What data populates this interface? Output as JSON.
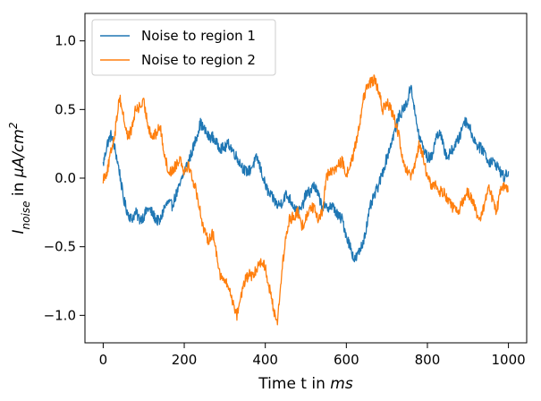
{
  "chart_data": {
    "type": "line",
    "xlabel": "Time t in ms",
    "xlabel_parts": {
      "prefix": "Time t in ",
      "unit": "ms"
    },
    "ylabel": "I_noise in μA/cm²",
    "ylabel_parts": {
      "symbol": "I",
      "subscript": "noise",
      "middle": " in ",
      "unit": "μA/cm",
      "superscript": "2"
    },
    "xlim": [
      -45,
      1045
    ],
    "ylim": [
      -1.2,
      1.2
    ],
    "x_ticks": [
      0,
      200,
      400,
      600,
      800,
      1000
    ],
    "x_tick_labels": [
      "0",
      "200",
      "400",
      "600",
      "800",
      "1000"
    ],
    "y_ticks": [
      -1.0,
      -0.5,
      0.0,
      0.5,
      1.0
    ],
    "y_tick_labels": [
      "−1.0",
      "−0.5",
      "0.0",
      "0.5",
      "1.0"
    ],
    "grid": false,
    "legend_position": "top-left",
    "series": [
      {
        "name": "Noise to region 1",
        "color": "#1f77b4",
        "x": [
          0,
          10,
          20,
          30,
          40,
          50,
          60,
          70,
          80,
          90,
          100,
          110,
          120,
          130,
          140,
          150,
          160,
          170,
          180,
          190,
          200,
          210,
          220,
          230,
          240,
          250,
          260,
          270,
          280,
          290,
          300,
          310,
          320,
          330,
          340,
          350,
          360,
          370,
          380,
          390,
          400,
          410,
          420,
          430,
          440,
          450,
          460,
          470,
          480,
          490,
          500,
          510,
          520,
          530,
          540,
          550,
          560,
          570,
          580,
          590,
          600,
          610,
          620,
          630,
          640,
          650,
          660,
          670,
          680,
          690,
          700,
          710,
          720,
          730,
          740,
          750,
          760,
          770,
          780,
          790,
          800,
          810,
          820,
          830,
          840,
          850,
          860,
          870,
          880,
          890,
          900,
          910,
          920,
          930,
          940,
          950,
          960,
          970,
          980,
          990,
          1000
        ],
        "values": [
          0.1,
          0.25,
          0.32,
          0.2,
          0.05,
          -0.15,
          -0.25,
          -0.3,
          -0.25,
          -0.3,
          -0.28,
          -0.22,
          -0.25,
          -0.3,
          -0.32,
          -0.22,
          -0.18,
          -0.2,
          -0.12,
          -0.05,
          0.05,
          0.12,
          0.2,
          0.3,
          0.4,
          0.35,
          0.3,
          0.3,
          0.25,
          0.22,
          0.22,
          0.25,
          0.2,
          0.15,
          0.1,
          0.05,
          0.05,
          0.1,
          0.15,
          0.05,
          -0.05,
          -0.12,
          -0.15,
          -0.2,
          -0.18,
          -0.12,
          -0.15,
          -0.2,
          -0.25,
          -0.22,
          -0.12,
          -0.1,
          -0.05,
          -0.12,
          -0.2,
          -0.22,
          -0.2,
          -0.22,
          -0.28,
          -0.3,
          -0.42,
          -0.5,
          -0.6,
          -0.55,
          -0.48,
          -0.35,
          -0.2,
          -0.12,
          -0.05,
          0.05,
          0.15,
          0.25,
          0.35,
          0.45,
          0.5,
          0.55,
          0.68,
          0.45,
          0.3,
          0.22,
          0.15,
          0.15,
          0.28,
          0.35,
          0.22,
          0.15,
          0.2,
          0.25,
          0.3,
          0.42,
          0.4,
          0.32,
          0.25,
          0.22,
          0.2,
          0.12,
          0.12,
          0.1,
          0.05,
          0.0,
          0.05
        ]
      },
      {
        "name": "Noise to region 2",
        "color": "#ff7f0e",
        "x": [
          0,
          10,
          20,
          30,
          40,
          50,
          60,
          70,
          80,
          90,
          100,
          110,
          120,
          130,
          140,
          150,
          160,
          170,
          180,
          190,
          200,
          210,
          220,
          230,
          240,
          250,
          260,
          270,
          280,
          290,
          300,
          310,
          320,
          330,
          340,
          350,
          360,
          370,
          380,
          390,
          400,
          410,
          420,
          430,
          440,
          450,
          460,
          470,
          480,
          490,
          500,
          510,
          520,
          530,
          540,
          550,
          560,
          570,
          580,
          590,
          600,
          610,
          620,
          630,
          640,
          650,
          660,
          670,
          680,
          690,
          700,
          710,
          720,
          730,
          740,
          750,
          760,
          770,
          780,
          790,
          800,
          810,
          820,
          830,
          840,
          850,
          860,
          870,
          880,
          890,
          900,
          910,
          920,
          930,
          940,
          950,
          960,
          970,
          980,
          990,
          1000
        ],
        "values": [
          0.0,
          0.05,
          0.2,
          0.35,
          0.6,
          0.45,
          0.3,
          0.35,
          0.5,
          0.52,
          0.55,
          0.4,
          0.3,
          0.32,
          0.38,
          0.2,
          0.05,
          0.05,
          0.1,
          0.15,
          0.05,
          0.1,
          0.0,
          -0.1,
          -0.25,
          -0.4,
          -0.45,
          -0.4,
          -0.55,
          -0.72,
          -0.75,
          -0.8,
          -0.9,
          -1.0,
          -0.85,
          -0.75,
          -0.7,
          -0.72,
          -0.65,
          -0.6,
          -0.65,
          -0.8,
          -0.95,
          -1.05,
          -0.7,
          -0.45,
          -0.3,
          -0.28,
          -0.25,
          -0.35,
          -0.3,
          -0.2,
          -0.22,
          -0.3,
          -0.25,
          0.0,
          0.05,
          0.05,
          0.1,
          0.12,
          0.02,
          0.1,
          0.2,
          0.35,
          0.55,
          0.65,
          0.7,
          0.72,
          0.62,
          0.5,
          0.55,
          0.5,
          0.42,
          0.3,
          0.1,
          0.05,
          0.0,
          0.1,
          0.25,
          0.15,
          0.0,
          -0.05,
          -0.05,
          -0.1,
          -0.1,
          -0.15,
          -0.2,
          -0.25,
          -0.22,
          -0.15,
          -0.1,
          -0.15,
          -0.25,
          -0.32,
          -0.2,
          -0.05,
          -0.15,
          -0.25,
          -0.1,
          -0.05,
          -0.1
        ]
      }
    ]
  }
}
